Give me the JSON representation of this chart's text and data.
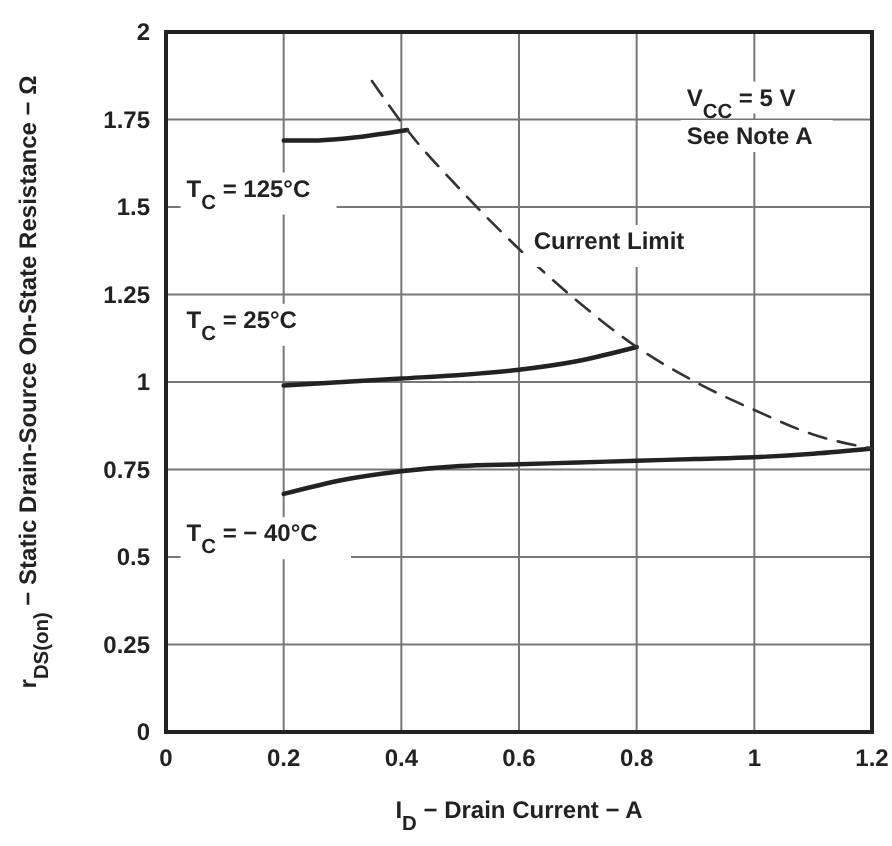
{
  "chart_data": {
    "type": "line",
    "xlabel": "I$_{D}$ − Drain Current − A",
    "ylabel": "r$_{DS(on)}$ − Static Drain-Source On-State Resistance − Ω",
    "xlim": [
      0,
      1.2
    ],
    "xticks": [
      0,
      0.2,
      0.4,
      0.6,
      0.8,
      1,
      1.2
    ],
    "ylim": [
      0,
      2
    ],
    "yticks": [
      0,
      0.25,
      0.5,
      0.75,
      1,
      1.25,
      1.5,
      1.75,
      2
    ],
    "grid": true,
    "marker": "none",
    "series": [
      {
        "name": "T$_{C}$ = 125°C",
        "color": "#222222",
        "line_style": "solid",
        "x": [
          0.2,
          0.25,
          0.3,
          0.35,
          0.41
        ],
        "values": [
          1.69,
          1.69,
          1.695,
          1.705,
          1.72
        ]
      },
      {
        "name": "T$_{C}$ = 25°C",
        "color": "#222222",
        "line_style": "solid",
        "x": [
          0.2,
          0.3,
          0.4,
          0.5,
          0.6,
          0.7,
          0.8
        ],
        "values": [
          0.99,
          1.0,
          1.01,
          1.02,
          1.035,
          1.06,
          1.1
        ]
      },
      {
        "name": "T$_{C}$ = − 40°C",
        "color": "#222222",
        "line_style": "solid",
        "x": [
          0.2,
          0.3,
          0.4,
          0.5,
          0.6,
          0.7,
          0.8,
          0.9,
          1.0,
          1.1,
          1.2
        ],
        "values": [
          0.68,
          0.72,
          0.745,
          0.76,
          0.765,
          0.77,
          0.775,
          0.78,
          0.785,
          0.795,
          0.81
        ]
      },
      {
        "name": "Current  Limit",
        "color": "#333333",
        "line_style": "dashed",
        "x": [
          0.35,
          0.41,
          0.5,
          0.6,
          0.7,
          0.8,
          0.9,
          1.0,
          1.1,
          1.2
        ],
        "values": [
          1.86,
          1.72,
          1.55,
          1.38,
          1.23,
          1.1,
          1.0,
          0.92,
          0.85,
          0.81
        ]
      }
    ],
    "annotations": [
      "V$_{CC}$ = 5 V",
      "See Note A"
    ]
  }
}
